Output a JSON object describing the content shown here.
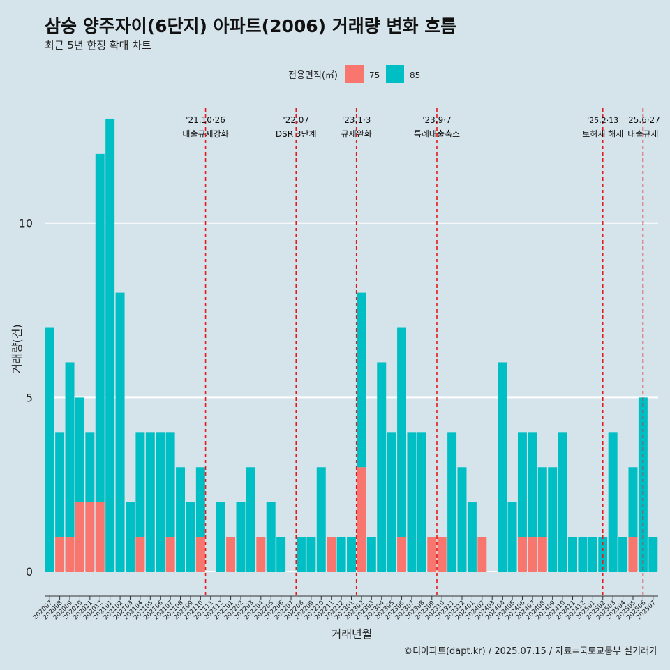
{
  "chart_data": {
    "type": "bar",
    "stacked": true,
    "title": "삼숭 양주자이(6단지) 아파트(2006) 거래량 변화 흐름",
    "subtitle": "최근 5년 한정 확대 차트",
    "xlabel": "거래년월",
    "ylabel": "거래량(건)",
    "caption": "©디아파트(dapt.kr) / 2025.07.15 / 자료=국토교통부 실거래가",
    "legend": {
      "title": "전용면적(㎡)",
      "position": "top"
    },
    "ylim": [
      -0.7,
      13.6
    ],
    "y_ticks": [
      0,
      5,
      10
    ],
    "grid": true,
    "categories": [
      "202007",
      "202008",
      "202009",
      "202010",
      "202011",
      "202012",
      "202101",
      "202102",
      "202103",
      "202104",
      "202105",
      "202106",
      "202107",
      "202108",
      "202109",
      "202110",
      "202111",
      "202112",
      "202201",
      "202202",
      "202203",
      "202204",
      "202205",
      "202206",
      "202207",
      "202208",
      "202209",
      "202210",
      "202211",
      "202212",
      "202301",
      "202302",
      "202303",
      "202304",
      "202305",
      "202306",
      "202307",
      "202308",
      "202309",
      "202310",
      "202311",
      "202312",
      "202401",
      "202402",
      "202403",
      "202404",
      "202405",
      "202406",
      "202407",
      "202408",
      "202409",
      "202410",
      "202411",
      "202412",
      "202501",
      "202502",
      "202503",
      "202504",
      "202505",
      "202506",
      "202507"
    ],
    "series": [
      {
        "name": "75",
        "color": "#f8766d",
        "values": [
          0,
          1,
          1,
          2,
          2,
          2,
          0,
          0,
          0,
          1,
          0,
          0,
          1,
          0,
          0,
          1,
          0,
          0,
          1,
          0,
          0,
          1,
          0,
          0,
          0,
          0,
          0,
          0,
          1,
          0,
          0,
          3,
          0,
          0,
          0,
          1,
          0,
          0,
          1,
          1,
          0,
          0,
          0,
          1,
          0,
          0,
          0,
          1,
          1,
          1,
          0,
          0,
          0,
          0,
          0,
          0,
          0,
          0,
          1,
          0,
          0
        ]
      },
      {
        "name": "85",
        "color": "#00bfc4",
        "values": [
          7,
          3,
          5,
          3,
          2,
          10,
          13,
          8,
          2,
          3,
          4,
          4,
          3,
          3,
          2,
          2,
          0,
          2,
          0,
          2,
          3,
          0,
          2,
          1,
          0,
          1,
          1,
          3,
          0,
          1,
          1,
          5,
          1,
          6,
          4,
          6,
          4,
          4,
          0,
          0,
          4,
          3,
          2,
          0,
          0,
          6,
          2,
          3,
          3,
          2,
          3,
          4,
          1,
          1,
          1,
          1,
          4,
          1,
          2,
          5,
          1
        ]
      }
    ],
    "events": [
      {
        "x": 15.5,
        "date": "'21.10·26",
        "label": "대출규제강화"
      },
      {
        "x": 24.5,
        "date": "'22.07",
        "label": "DSR 3단계"
      },
      {
        "x": 30.5,
        "date": "'23.1·3",
        "label": "규제완화"
      },
      {
        "x": 38.5,
        "date": "'23.9·7",
        "label": "특례대출축소"
      },
      {
        "x": 55.0,
        "date": "'25.2·13",
        "label": "토허제 해제"
      },
      {
        "x": 59.0,
        "date": "'25.6·27",
        "label": "대출규제"
      }
    ]
  }
}
